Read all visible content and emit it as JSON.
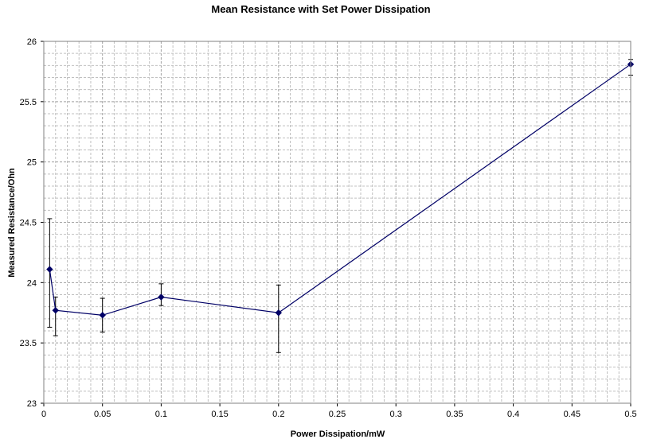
{
  "chart_data": {
    "type": "line",
    "title": "Mean Resistance with Set Power Dissipation",
    "xlabel": "Power Dissipation/mW",
    "ylabel": "Measured Resistance/Ohn",
    "xlim": [
      0,
      0.5
    ],
    "ylim": [
      23,
      26
    ],
    "x_ticks": [
      "0",
      "0.05",
      "0.1",
      "0.15",
      "0.2",
      "0.25",
      "0.3",
      "0.35",
      "0.4",
      "0.45",
      "0.5"
    ],
    "y_ticks": [
      "23",
      "23.5",
      "24",
      "24.5",
      "25",
      "25.5",
      "26"
    ],
    "grid": true,
    "line_color": "#000066",
    "series": [
      {
        "points": [
          {
            "x": 0.005,
            "y": 24.11,
            "err_low": 23.63,
            "err_high": 24.53
          },
          {
            "x": 0.01,
            "y": 23.77,
            "err_low": 23.56,
            "err_high": 23.88
          },
          {
            "x": 0.05,
            "y": 23.73,
            "err_low": 23.59,
            "err_high": 23.87
          },
          {
            "x": 0.1,
            "y": 23.88,
            "err_low": 23.81,
            "err_high": 23.99
          },
          {
            "x": 0.2,
            "y": 23.75,
            "err_low": 23.42,
            "err_high": 23.98
          },
          {
            "x": 0.5,
            "y": 25.81,
            "err_low": 25.72,
            "err_high": 25.85
          }
        ]
      }
    ]
  }
}
